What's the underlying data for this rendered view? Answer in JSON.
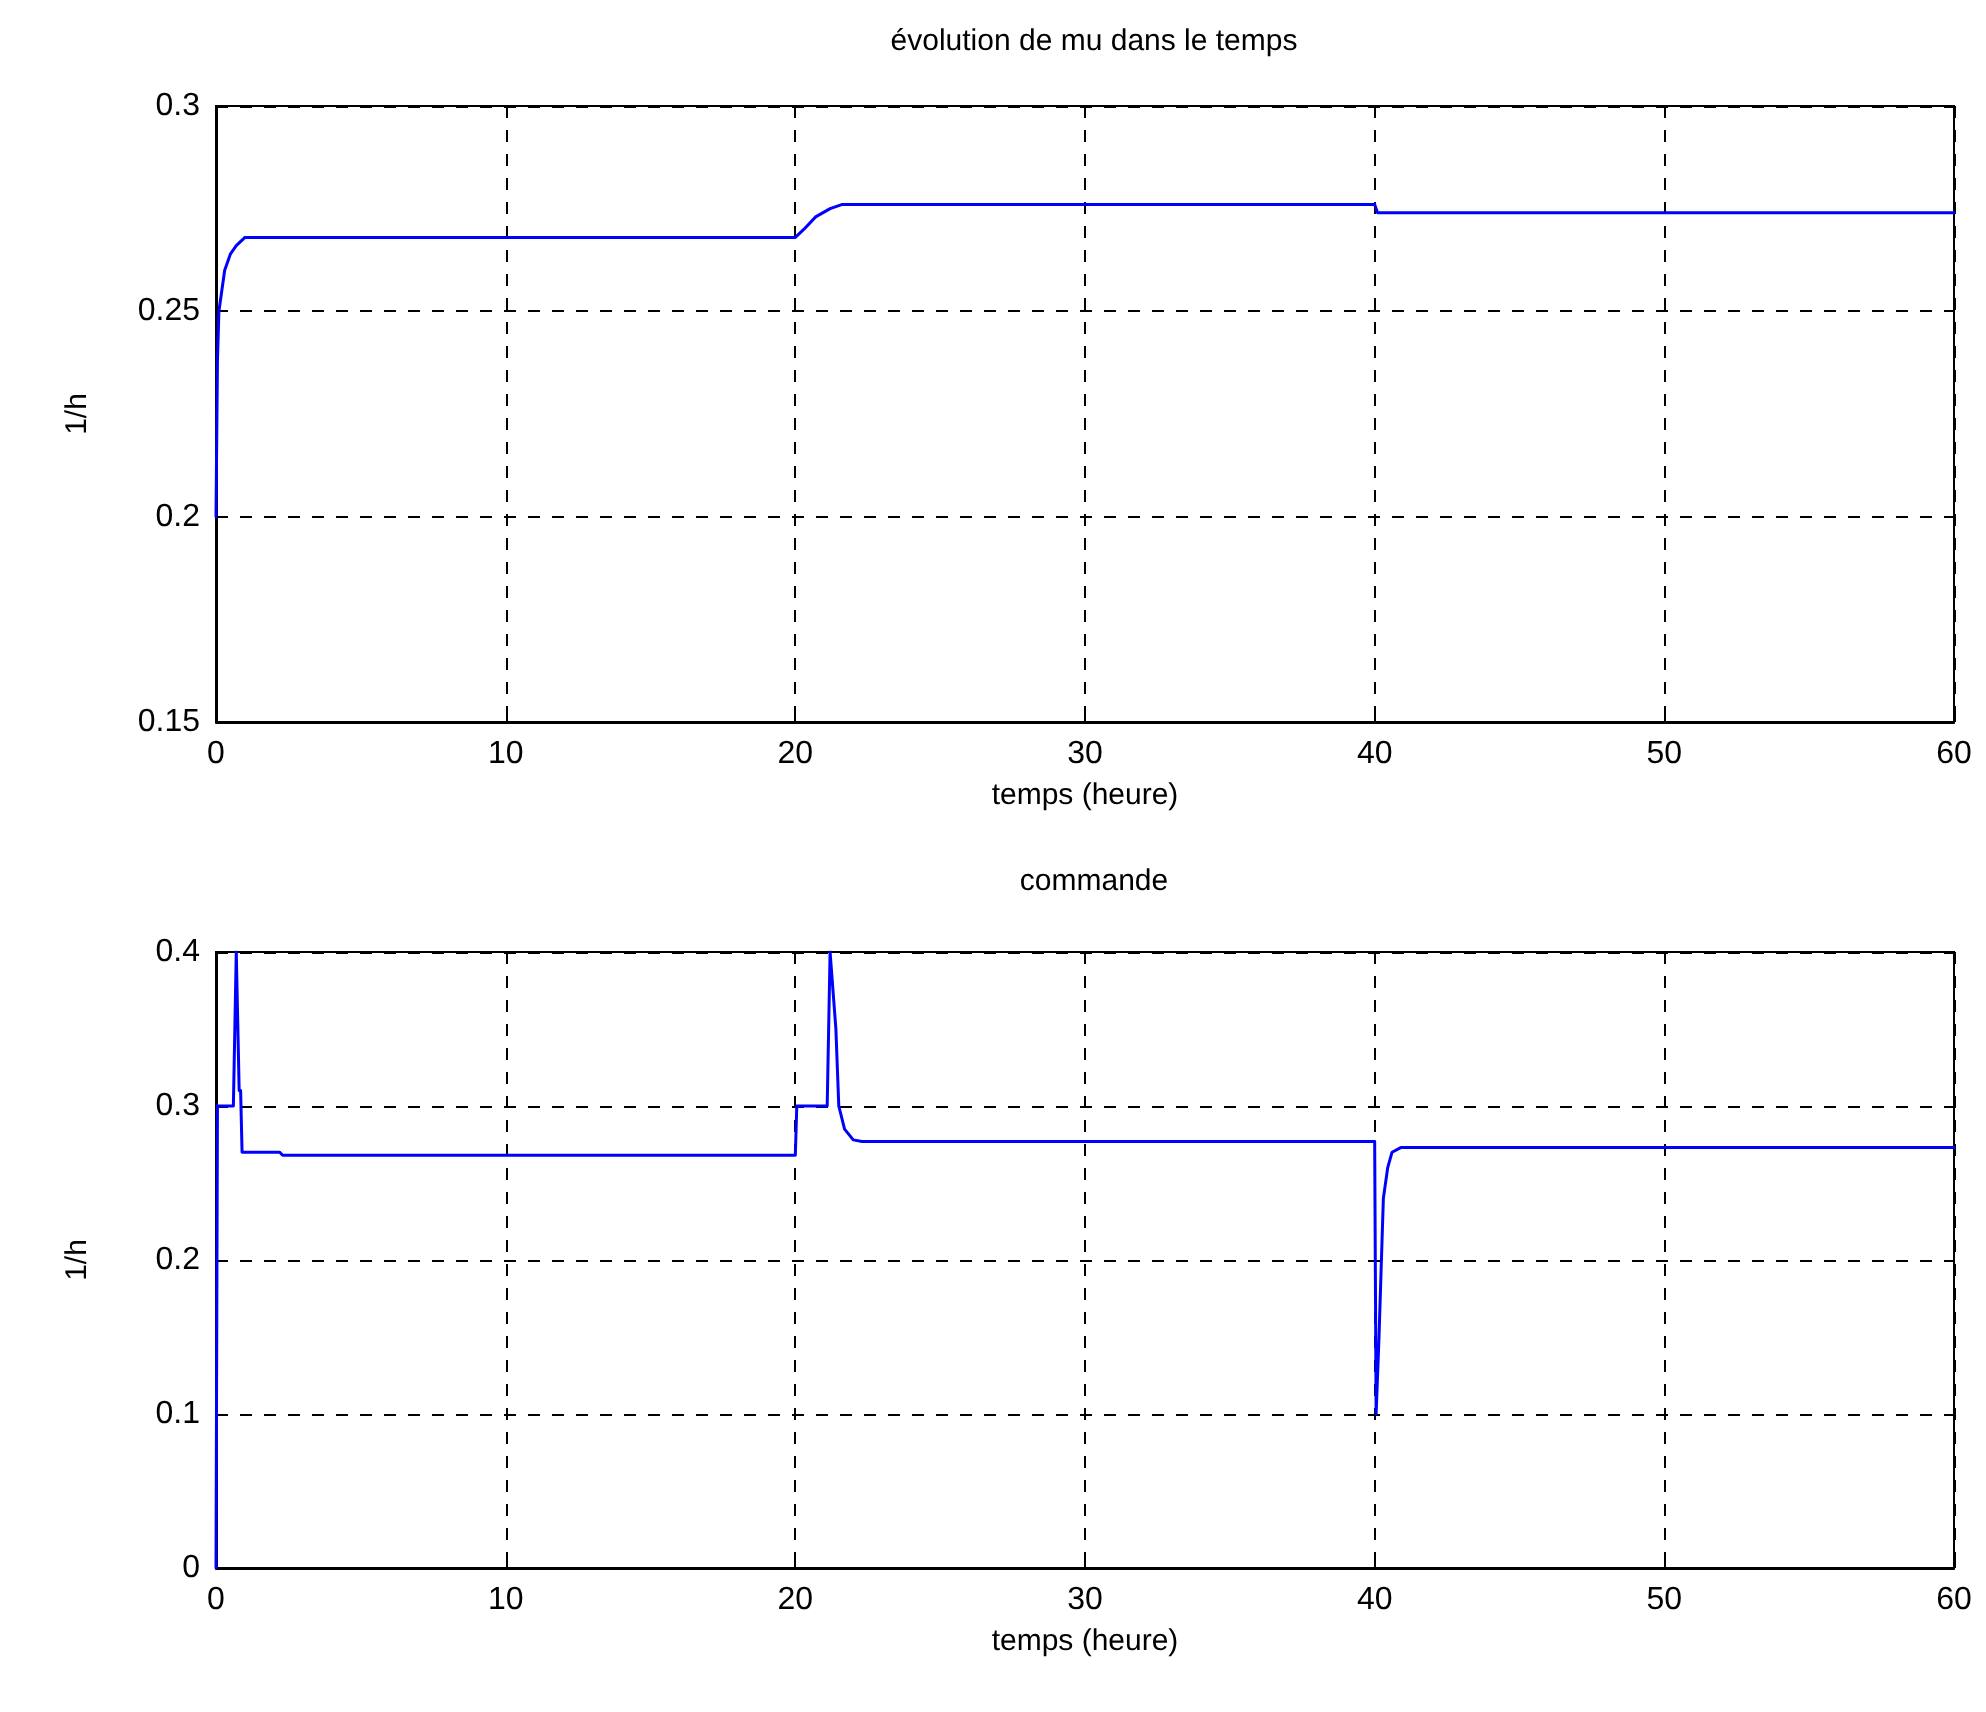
{
  "chart_data": [
    {
      "type": "line",
      "title": "évolution de mu dans le temps",
      "xlabel": "temps (heure)",
      "ylabel": "1/h",
      "xlim": [
        0,
        60
      ],
      "xticks": [
        0,
        10,
        20,
        30,
        40,
        50,
        60
      ],
      "ylim": [
        0.15,
        0.3
      ],
      "yticks": [
        0.15,
        0.2,
        0.25,
        0.3
      ],
      "grid": true,
      "marker": "none",
      "line_style": "solid",
      "series": [
        {
          "color": "#0000ff",
          "x": [
            0,
            0.05,
            0.1,
            0.2,
            0.3,
            0.5,
            0.7,
            1,
            20,
            20.3,
            20.7,
            21.2,
            21.6,
            40,
            40.1,
            60
          ],
          "values": [
            0.2,
            0.238,
            0.25,
            0.255,
            0.26,
            0.264,
            0.266,
            0.268,
            0.268,
            0.27,
            0.273,
            0.275,
            0.276,
            0.276,
            0.274,
            0.274
          ]
        }
      ]
    },
    {
      "type": "line",
      "title": "commande",
      "xlabel": "temps (heure)",
      "ylabel": "1/h",
      "xlim": [
        0,
        60
      ],
      "xticks": [
        0,
        10,
        20,
        30,
        40,
        50,
        60
      ],
      "ylim": [
        0,
        0.4
      ],
      "yticks": [
        0,
        0.1,
        0.2,
        0.3,
        0.4
      ],
      "grid": true,
      "marker": "none",
      "line_style": "solid",
      "series": [
        {
          "color": "#0000ff",
          "x": [
            0,
            0.05,
            0.6,
            0.7,
            0.8,
            0.85,
            0.9,
            1,
            2.2,
            2.3,
            20,
            20.05,
            21.1,
            21.2,
            21.4,
            21.5,
            21.7,
            22,
            22.3,
            40,
            40.05,
            40.15,
            40.3,
            40.45,
            40.6,
            40.9,
            60
          ],
          "values": [
            0,
            0.3,
            0.3,
            0.4,
            0.31,
            0.31,
            0.27,
            0.27,
            0.27,
            0.268,
            0.268,
            0.3,
            0.3,
            0.4,
            0.35,
            0.3,
            0.285,
            0.278,
            0.277,
            0.277,
            0.1,
            0.15,
            0.24,
            0.26,
            0.27,
            0.273,
            0.273
          ]
        }
      ]
    }
  ]
}
